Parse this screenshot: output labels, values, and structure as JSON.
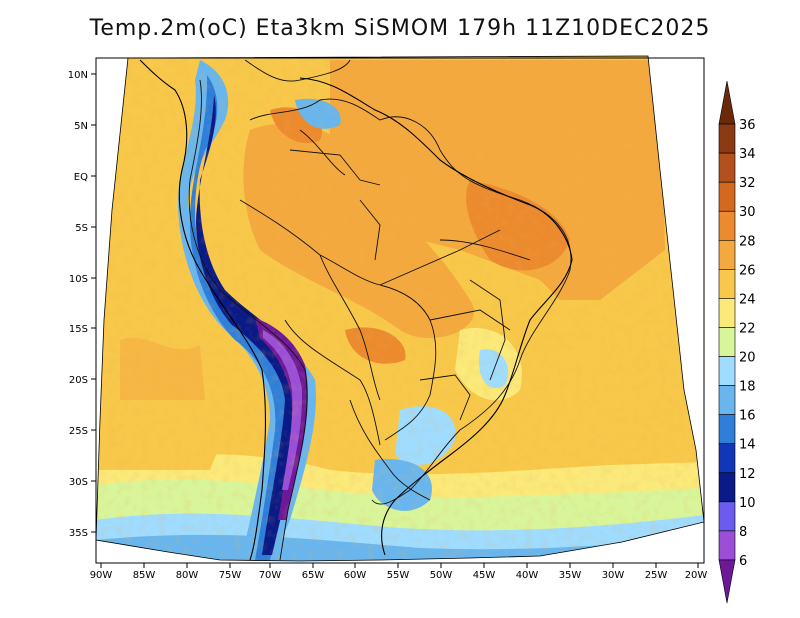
{
  "map": {
    "title": "Temp.2m(oC) Eta3km SiSMOM 179h 11Z10DEC2025",
    "lon_ticks": [
      "90W",
      "85W",
      "80W",
      "75W",
      "70W",
      "65W",
      "60W",
      "55W",
      "50W",
      "45W",
      "40W",
      "35W",
      "30W",
      "25W",
      "20W"
    ],
    "lat_ticks": [
      "10N",
      "5N",
      "EQ",
      "5S",
      "10S",
      "15S",
      "20S",
      "25S",
      "30S",
      "35S"
    ],
    "colorbar": {
      "labels": [
        "36",
        "34",
        "32",
        "30",
        "28",
        "26",
        "24",
        "22",
        "20",
        "18",
        "16",
        "14",
        "12",
        "10",
        "8",
        "6"
      ],
      "colors": [
        "#6a2a0a",
        "#8b3a14",
        "#b4501e",
        "#d2691e",
        "#ec8a2e",
        "#f4a93e",
        "#f8c84a",
        "#fbe97a",
        "#d9f59a",
        "#9fdcff",
        "#69b6ee",
        "#2f7fd9",
        "#1236b8",
        "#0a1a86",
        "#6b5cef",
        "#9b4fd6",
        "#6c1898"
      ]
    }
  }
}
